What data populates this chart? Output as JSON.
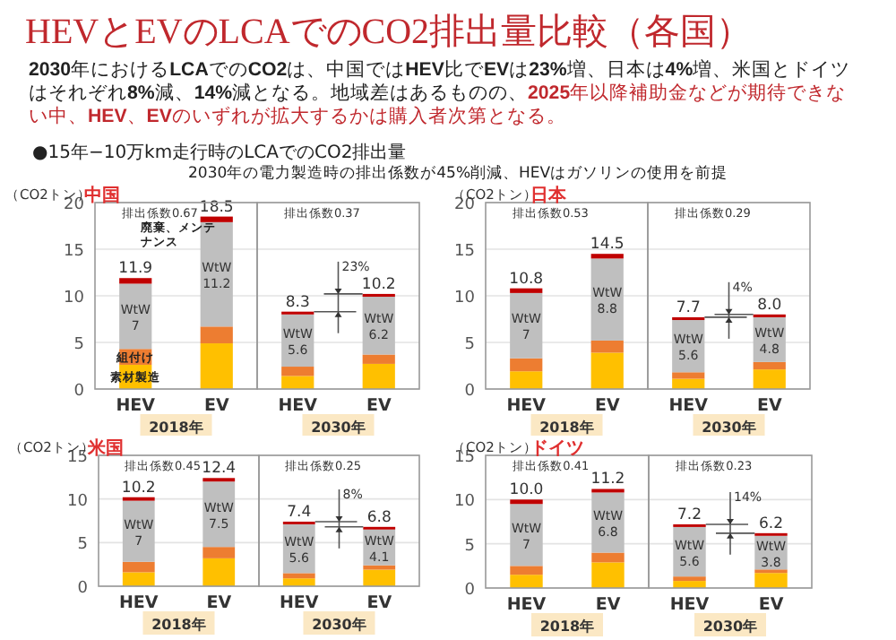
{
  "chart_data": [
    {
      "type": "other",
      "title": "HEVとEVのLCAでのCO2排出量比較（各国）",
      "annotations": [
        "**2030**年における**LCA**での**CO2**は、中国では**HEV**比で**EV**は**23%**増、日本は**4%**増、米国とドイツはそれぞれ**8%**減、**14%**減となる。地域差はあるものの、",
        "**2025**年以降補助金などが期待できない中、**HEV**、**EV**のいずれが拡大するかは購入者次第となる。",
        "●15年−10万km走行時のLCAでのCO2排出量",
        "2030年の電力製造時の排出係数が45%削減、HEVはガソリンの使用を前提"
      ]
    },
    {
      "type": "bar",
      "stacked": true,
      "title": "中国",
      "ylabel": "（CO2トン）",
      "categories": [
        "HEV",
        "EV",
        "HEV",
        "EV"
      ],
      "ylim": [
        0,
        20
      ],
      "yticks": [
        0,
        5,
        10,
        15,
        20
      ],
      "grid": "y",
      "series": [
        {
          "name": "素材製造",
          "color": "#ffc000",
          "values": [
            2.6,
            4.9,
            1.4,
            2.7
          ]
        },
        {
          "name": "組付け",
          "color": "#ed7d31",
          "values": [
            1.7,
            1.8,
            1.0,
            1.0
          ]
        },
        {
          "color": "#bfbfbf",
          "values": [
            7,
            11.2,
            5.6,
            6.2
          ],
          "value_labels": [
            "WtW 7",
            "WtW 11.2",
            "WtW 5.6",
            "WtW 6.2"
          ]
        },
        {
          "name": "廃棄、メンテナンス",
          "color": "#c00000",
          "values": [
            0.6,
            0.6,
            0.3,
            0.3
          ]
        }
      ],
      "totals": [
        "11.9",
        "18.5",
        "8.3",
        "10.2"
      ],
      "annotations": [
        "排出係数0.67",
        "排出係数0.37",
        "2018年",
        "2030年",
        "23%"
      ]
    },
    {
      "type": "bar",
      "stacked": true,
      "title": "日本",
      "ylabel": "（CO2トン）",
      "categories": [
        "HEV",
        "EV",
        "HEV",
        "EV"
      ],
      "ylim": [
        0,
        20
      ],
      "yticks": [
        0,
        5,
        10,
        15,
        20
      ],
      "grid": "y",
      "series": [
        {
          "color": "#ffc000",
          "values": [
            1.9,
            3.9,
            1.1,
            2.1
          ]
        },
        {
          "color": "#ed7d31",
          "values": [
            1.4,
            1.3,
            0.7,
            0.8
          ]
        },
        {
          "color": "#bfbfbf",
          "values": [
            7,
            8.8,
            5.6,
            4.8
          ],
          "value_labels": [
            "WtW 7",
            "WtW 8.8",
            "WtW 5.6",
            "WtW 4.8"
          ]
        },
        {
          "color": "#c00000",
          "values": [
            0.5,
            0.5,
            0.3,
            0.3
          ]
        }
      ],
      "totals": [
        "10.8",
        "14.5",
        "7.7",
        "8.0"
      ],
      "annotations": [
        "排出係数0.53",
        "排出係数0.29",
        "2018年",
        "2030年",
        "4%"
      ]
    },
    {
      "type": "bar",
      "stacked": true,
      "title": "米国",
      "ylabel": "（CO2トン）",
      "categories": [
        "HEV",
        "EV",
        "HEV",
        "EV"
      ],
      "ylim": [
        0,
        15
      ],
      "yticks": [
        0,
        5,
        10,
        15
      ],
      "grid": "y",
      "series": [
        {
          "color": "#ffc000",
          "values": [
            1.6,
            3.2,
            0.9,
            1.9
          ]
        },
        {
          "color": "#ed7d31",
          "values": [
            1.2,
            1.3,
            0.6,
            0.5
          ]
        },
        {
          "color": "#bfbfbf",
          "values": [
            7,
            7.5,
            5.6,
            4.1
          ],
          "value_labels": [
            "WtW 7",
            "WtW 7.5",
            "WtW 5.6",
            "WtW 4.1"
          ]
        },
        {
          "color": "#c00000",
          "values": [
            0.4,
            0.4,
            0.3,
            0.3
          ]
        }
      ],
      "totals": [
        "10.2",
        "12.4",
        "7.4",
        "6.8"
      ],
      "annotations": [
        "排出係数0.45",
        "排出係数0.25",
        "2018年",
        "2030年",
        "8%"
      ]
    },
    {
      "type": "bar",
      "stacked": true,
      "title": "ドイツ",
      "ylabel": "（CO2トン）",
      "categories": [
        "HEV",
        "EV",
        "HEV",
        "EV"
      ],
      "ylim": [
        0,
        15
      ],
      "yticks": [
        0,
        5,
        10,
        15
      ],
      "grid": "y",
      "series": [
        {
          "color": "#ffc000",
          "values": [
            1.5,
            2.9,
            0.8,
            1.7
          ]
        },
        {
          "color": "#ed7d31",
          "values": [
            1.0,
            1.1,
            0.5,
            0.4
          ]
        },
        {
          "color": "#bfbfbf",
          "values": [
            7,
            6.8,
            5.6,
            3.8
          ],
          "value_labels": [
            "WtW 7",
            "WtW 6.8",
            "WtW 5.6",
            "WtW 3.8"
          ]
        },
        {
          "color": "#c00000",
          "values": [
            0.5,
            0.4,
            0.3,
            0.3
          ]
        }
      ],
      "totals": [
        "10.0",
        "11.2",
        "7.2",
        "6.2"
      ],
      "annotations": [
        "排出係数0.41",
        "排出係数0.23",
        "2018年",
        "2030年",
        "14%"
      ]
    }
  ]
}
